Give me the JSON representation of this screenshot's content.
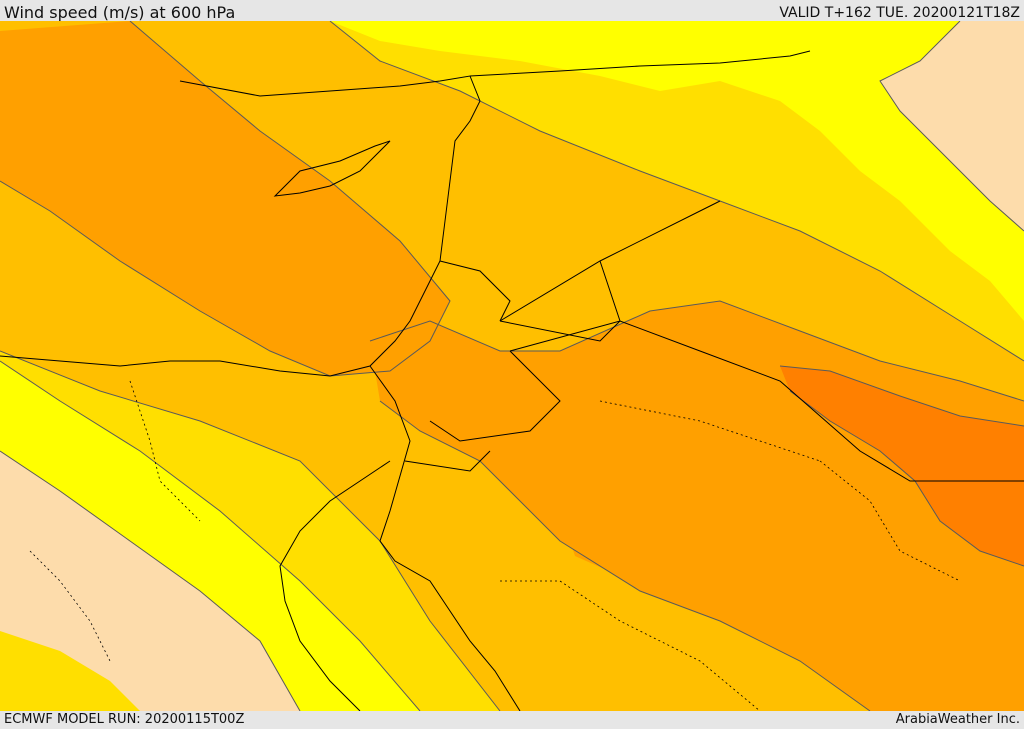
{
  "header": {
    "title": "Wind speed (m/s) at 600 hPa",
    "valid_time": "VALID T+162 TUE. 20200121T18Z"
  },
  "footer": {
    "model_run": "ECMWF MODEL RUN: 20200115T00Z",
    "credit": "ArabiaWeather Inc."
  },
  "map": {
    "region": "Eastern Mediterranean / Middle East",
    "field": "wind speed",
    "level": "600 hPa",
    "colors": {
      "peach": "#fddcab",
      "light_yellow": "#ffff00",
      "yellow": "#ffdf00",
      "gold": "#ffbf00",
      "orange": "#ffa000",
      "dark_orange": "#ff8000",
      "contour": "#5a5a5a",
      "borders": "#000000"
    }
  }
}
